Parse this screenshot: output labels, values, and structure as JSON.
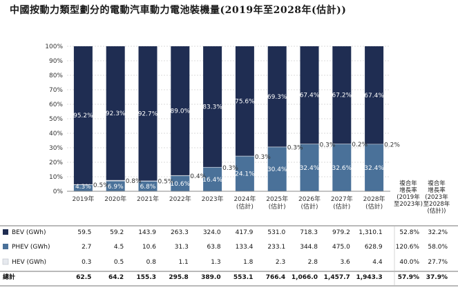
{
  "title": "中國按動力類型劃分的電動汽車動力電池裝機量(2019年至2028年(估計))",
  "chart_data": {
    "type": "bar",
    "stacked": true,
    "percent": true,
    "y_ticks": [
      "0%",
      "10%",
      "20%",
      "30%",
      "40%",
      "50%",
      "60%",
      "70%",
      "80%",
      "90%",
      "100%"
    ],
    "ylim": [
      0,
      100
    ],
    "grid": true,
    "categories": [
      [
        "2019年"
      ],
      [
        "2020年"
      ],
      [
        "2021年"
      ],
      [
        "2022年"
      ],
      [
        "2023年"
      ],
      [
        "2024年",
        "(估計)"
      ],
      [
        "2025年",
        "(估計)"
      ],
      [
        "2026年",
        "(估計)"
      ],
      [
        "2027年",
        "(估計)"
      ],
      [
        "2028年",
        "(估計)"
      ]
    ],
    "series": [
      {
        "name": "HEV",
        "color": "#d9dee6",
        "values": [
          0.5,
          0.8,
          0.5,
          0.4,
          0.3,
          0.3,
          0.3,
          0.3,
          0.2,
          0.2
        ],
        "labels": [
          "0.5%",
          "0.8%",
          "0.5%",
          "0.4%",
          "0.3%",
          "0.3%",
          "0.3%",
          "0.3%",
          "0.2%",
          "0.2%"
        ]
      },
      {
        "name": "PHEV",
        "color": "#4a7199",
        "values": [
          4.3,
          6.9,
          6.8,
          10.6,
          16.4,
          24.1,
          30.4,
          32.4,
          32.6,
          32.4
        ],
        "labels": [
          "4.3%",
          "6.9%",
          "6.8%",
          "10.6%",
          "16.4%",
          "24.1%",
          "30.4%",
          "32.4%",
          "32.6%",
          "32.4%"
        ]
      },
      {
        "name": "BEV",
        "color": "#1f2d52",
        "values": [
          95.2,
          92.3,
          92.7,
          89.0,
          83.3,
          75.6,
          69.3,
          67.4,
          67.2,
          67.4
        ],
        "labels": [
          "95.2%",
          "92.3%",
          "92.7%",
          "89.0%",
          "83.3%",
          "75.6%",
          "69.3%",
          "67.4%",
          "67.2%",
          "67.4%"
        ]
      }
    ],
    "cagr_headers": [
      [
        "複合年",
        "增長率",
        "(2019年",
        "至2023年)"
      ],
      [
        "複合年",
        "增長率",
        "(2023年",
        "至2028年",
        "(估計))"
      ]
    ],
    "table": {
      "rows": [
        {
          "label": "BEV (GWh)",
          "color": "#1f2d52",
          "values": [
            "59.5",
            "59.2",
            "143.9",
            "263.3",
            "324.0",
            "417.9",
            "531.0",
            "718.3",
            "979.2",
            "1,310.1"
          ],
          "cagr": [
            "52.8%",
            "32.2%"
          ]
        },
        {
          "label": "PHEV (GWh)",
          "color": "#4a7199",
          "values": [
            "2.7",
            "4.5",
            "10.6",
            "31.3",
            "63.8",
            "133.4",
            "233.1",
            "344.8",
            "475.0",
            "628.9"
          ],
          "cagr": [
            "120.6%",
            "58.0%"
          ]
        },
        {
          "label": "HEV (GWh)",
          "color": "#e6e9ee",
          "values": [
            "0.3",
            "0.5",
            "0.8",
            "1.1",
            "1.3",
            "1.8",
            "2.3",
            "2.8",
            "3.6",
            "4.4"
          ],
          "cagr": [
            "40.0%",
            "27.7%"
          ]
        },
        {
          "label": "總計",
          "color": null,
          "bold": true,
          "values": [
            "62.5",
            "64.2",
            "155.3",
            "295.8",
            "389.0",
            "553.1",
            "766.4",
            "1,066.0",
            "1,457.7",
            "1,943.3"
          ],
          "cagr": [
            "57.9%",
            "37.9%"
          ]
        }
      ]
    }
  }
}
